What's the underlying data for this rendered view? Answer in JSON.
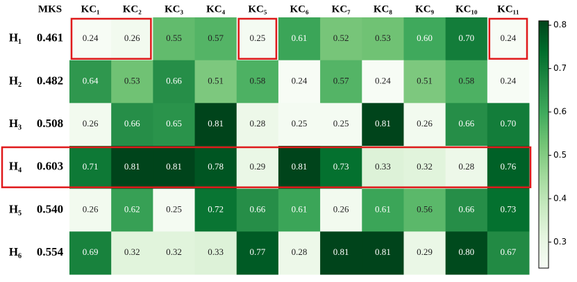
{
  "chart_data": {
    "type": "heatmap",
    "x": [
      "KC₁",
      "KC₂",
      "KC₃",
      "KC₄",
      "KC₅",
      "KC₆",
      "KC₇",
      "KC₈",
      "KC₉",
      "KC₁₀",
      "KC₁₁"
    ],
    "y": [
      "H₁",
      "H₂",
      "H₃",
      "H₄",
      "H₅",
      "H₆"
    ],
    "mks": {
      "title": "MKS",
      "values": [
        0.461,
        0.482,
        0.508,
        0.603,
        0.54,
        0.554
      ],
      "value_labels": [
        "0.461",
        "0.482",
        "0.508",
        "0.603",
        "0.540",
        "0.554"
      ]
    },
    "values": [
      [
        0.24,
        0.26,
        0.55,
        0.57,
        0.25,
        0.61,
        0.52,
        0.53,
        0.6,
        0.7,
        0.24
      ],
      [
        0.64,
        0.53,
        0.66,
        0.51,
        0.58,
        0.24,
        0.57,
        0.24,
        0.51,
        0.58,
        0.24
      ],
      [
        0.26,
        0.66,
        0.65,
        0.81,
        0.28,
        0.25,
        0.25,
        0.81,
        0.26,
        0.66,
        0.7
      ],
      [
        0.71,
        0.81,
        0.81,
        0.78,
        0.29,
        0.81,
        0.73,
        0.33,
        0.32,
        0.28,
        0.76
      ],
      [
        0.26,
        0.62,
        0.25,
        0.72,
        0.66,
        0.61,
        0.26,
        0.61,
        0.56,
        0.66,
        0.73
      ],
      [
        0.69,
        0.32,
        0.32,
        0.33,
        0.77,
        0.28,
        0.81,
        0.81,
        0.29,
        0.8,
        0.67
      ]
    ],
    "value_labels": [
      [
        "0.24",
        "0.26",
        "0.55",
        "0.57",
        "0.25",
        "0.61",
        "0.52",
        "0.53",
        "0.60",
        "0.70",
        "0.24"
      ],
      [
        "0.64",
        "0.53",
        "0.66",
        "0.51",
        "0.58",
        "0.24",
        "0.57",
        "0.24",
        "0.51",
        "0.58",
        "0.24"
      ],
      [
        "0.26",
        "0.66",
        "0.65",
        "0.81",
        "0.28",
        "0.25",
        "0.25",
        "0.81",
        "0.26",
        "0.66",
        "0.70"
      ],
      [
        "0.71",
        "0.81",
        "0.81",
        "0.78",
        "0.29",
        "0.81",
        "0.73",
        "0.33",
        "0.32",
        "0.28",
        "0.76"
      ],
      [
        "0.26",
        "0.62",
        "0.25",
        "0.72",
        "0.66",
        "0.61",
        "0.26",
        "0.61",
        "0.56",
        "0.66",
        "0.73"
      ],
      [
        "0.69",
        "0.32",
        "0.32",
        "0.33",
        "0.77",
        "0.28",
        "0.81",
        "0.81",
        "0.29",
        "0.80",
        "0.67"
      ]
    ],
    "colormap": "Greens",
    "zlim": [
      0.24,
      0.81
    ],
    "zticks": [
      0.3,
      0.4,
      0.5,
      0.6,
      0.7,
      0.8
    ],
    "highlight_color": "#e0191b",
    "highlights": [
      {
        "row": 0,
        "cols": [
          0,
          1
        ]
      },
      {
        "row": 0,
        "cols": [
          4,
          4
        ]
      },
      {
        "row": 0,
        "cols": [
          10,
          10
        ]
      },
      {
        "row": 3,
        "cols": [
          0,
          10
        ]
      }
    ]
  }
}
